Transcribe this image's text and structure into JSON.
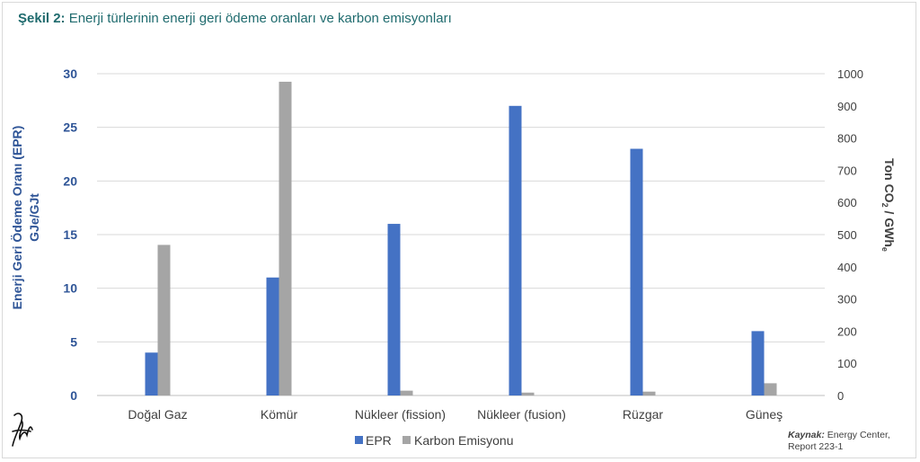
{
  "title": {
    "prefix": "Şekil 2:",
    "text": "Enerji türlerinin enerji  geri ödeme oranları ve karbon emisyonları"
  },
  "chart_data": {
    "type": "bar",
    "categories": [
      "Doğal Gaz",
      "Kömür",
      "Nükleer (fission)",
      "Nükleer (fusion)",
      "Rüzgar",
      "Güneş"
    ],
    "series": [
      {
        "name": "EPR",
        "axis": "left",
        "color": "#4472c4",
        "values": [
          4,
          11,
          16,
          27,
          23,
          6
        ]
      },
      {
        "name": "Karbon Emisyonu",
        "axis": "right",
        "color": "#a5a5a5",
        "values": [
          468,
          975,
          15,
          9,
          12,
          38
        ]
      }
    ],
    "y_left": {
      "label_line1": "Enerji Geri Ödeme Oranı (EPR)",
      "label_line2": "GJe/GJt",
      "ylim": [
        0,
        30
      ],
      "ticks": [
        "0",
        "5",
        "10",
        "15",
        "20",
        "25",
        "30"
      ]
    },
    "y_right": {
      "label_main": "Ton CO",
      "label_sub1": "2",
      "label_mid": "  / GWh",
      "label_sub2": "e",
      "ylim": [
        0,
        1000
      ],
      "ticks": [
        "0",
        "100",
        "200",
        "300",
        "400",
        "500",
        "600",
        "700",
        "800",
        "900",
        "1000"
      ]
    },
    "grid": true,
    "legend": "bottom"
  },
  "source": {
    "label": "Kaynak:",
    "line1": "Energy Center,",
    "line2": "Report 223-1"
  }
}
